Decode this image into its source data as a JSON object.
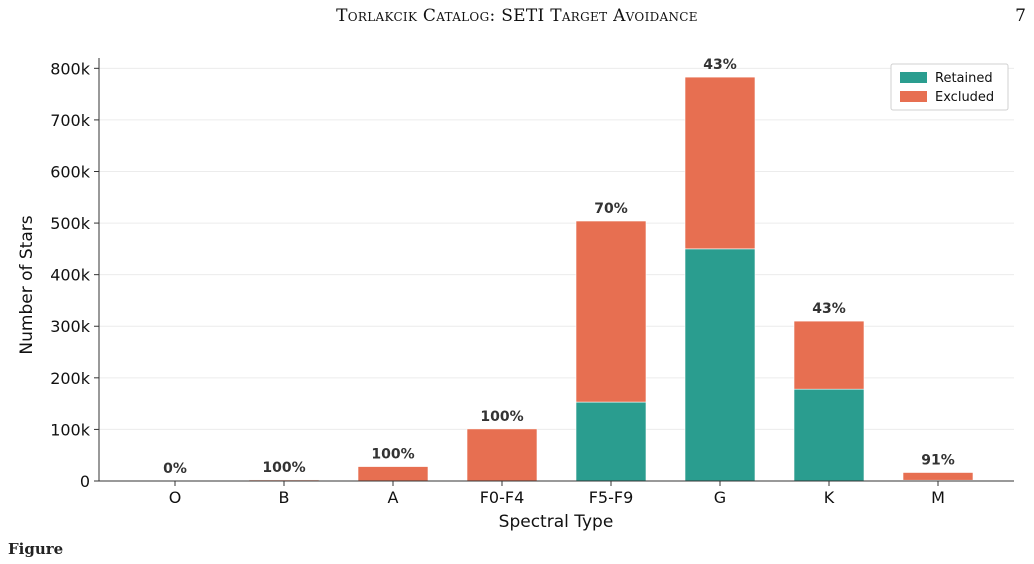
{
  "header": {
    "running_title": "Torlakcik Catalog: SETI Target Avoidance",
    "page_number": "7"
  },
  "caption": {
    "label": "Figure",
    "text": ""
  },
  "chart_data": {
    "type": "bar",
    "stacked": true,
    "title": "",
    "xlabel": "Spectral Type",
    "ylabel": "Number of Stars",
    "categories": [
      "O",
      "B",
      "A",
      "F0-F4",
      "F5-F9",
      "G",
      "K",
      "M"
    ],
    "series": [
      {
        "name": "Retained",
        "color": "#2a9d8f",
        "values": [
          0,
          0,
          0,
          0,
          153000,
          450000,
          178000,
          1500
        ]
      },
      {
        "name": "Excluded",
        "color": "#e76f51",
        "values": [
          0,
          2000,
          28000,
          101000,
          351000,
          333000,
          132000,
          15000
        ]
      }
    ],
    "bar_labels": [
      "0%",
      "100%",
      "100%",
      "100%",
      "70%",
      "43%",
      "43%",
      "91%"
    ],
    "ylim": [
      0,
      820000
    ],
    "yticks": [
      0,
      100000,
      200000,
      300000,
      400000,
      500000,
      600000,
      700000,
      800000
    ],
    "ytick_labels": [
      "0",
      "100k",
      "200k",
      "300k",
      "400k",
      "500k",
      "600k",
      "700k",
      "800k"
    ],
    "grid": "horizontal",
    "legend_position": "top-right"
  }
}
